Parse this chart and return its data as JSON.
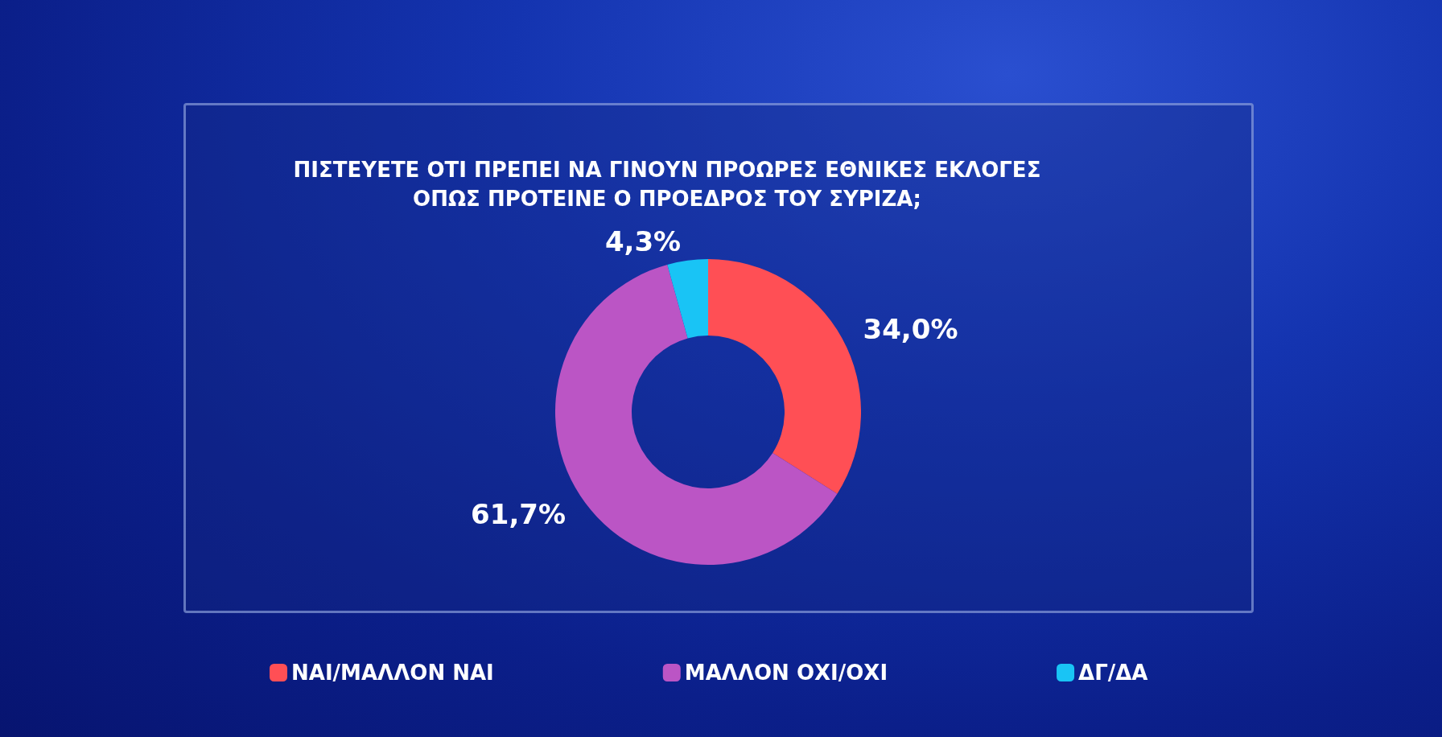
{
  "chart_data": {
    "type": "donut",
    "title": "ΠΙΣΤΕΥΕΤΕ ΟΤΙ ΠΡΕΠΕΙ ΝΑ ΓΙΝΟΥΝ ΠΡΟΩΡΕΣ ΕΘΝΙΚΕΣ ΕΚΛΟΓΕΣ\nΟΠΩΣ ΠΡΟΤΕΙΝΕ Ο ΠΡΟΕΔΡΟΣ ΤΟΥ ΣΥΡΙΖΑ;",
    "categories": [
      "ΝΑΙ/ΜΑΛΛΟΝ ΝΑΙ",
      "ΜΑΛΛΟΝ ΟΧΙ/ΟΧΙ",
      "ΔΓ/ΔΑ"
    ],
    "values": [
      34.0,
      61.7,
      4.3
    ],
    "colors": [
      "#ff4f55",
      "#bb55c5",
      "#19c4f5"
    ],
    "value_labels": [
      "34,0%",
      "61,7%",
      "4,3%"
    ],
    "legend": "bottom"
  }
}
